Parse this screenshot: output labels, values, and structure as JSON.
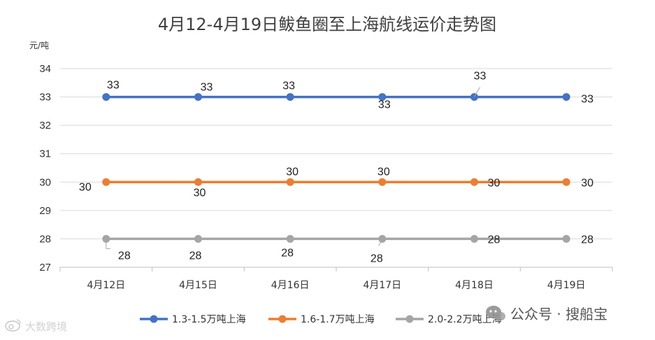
{
  "chart_data": {
    "type": "line",
    "title": "4月12-4月19日鲅鱼圈至上海航线运价走势图",
    "ylabel": "元/吨",
    "xlabel": "",
    "categories": [
      "4月12日",
      "4月15日",
      "4月16日",
      "4月17日",
      "4月18日",
      "4月19日"
    ],
    "ylim": [
      27,
      34
    ],
    "yticks": [
      27,
      28,
      29,
      30,
      31,
      32,
      33,
      34
    ],
    "grid": true,
    "legend_position": "bottom",
    "series": [
      {
        "name": "1.3-1.5万吨上海",
        "color": "#4472C4",
        "values": [
          33,
          33,
          33,
          33,
          33,
          33
        ]
      },
      {
        "name": "1.6-1.7万吨上海",
        "color": "#ED7D31",
        "values": [
          30,
          30,
          30,
          30,
          30,
          30
        ]
      },
      {
        "name": "2.0-2.2万吨上海",
        "color": "#A5A5A5",
        "values": [
          28,
          28,
          28,
          28,
          28,
          28
        ]
      }
    ]
  },
  "watermark": {
    "right_icon": "wechat-icon",
    "right_text": "公众号 · 搜船宝",
    "left_icon": "weibo-icon",
    "left_text": "大数跨境"
  }
}
